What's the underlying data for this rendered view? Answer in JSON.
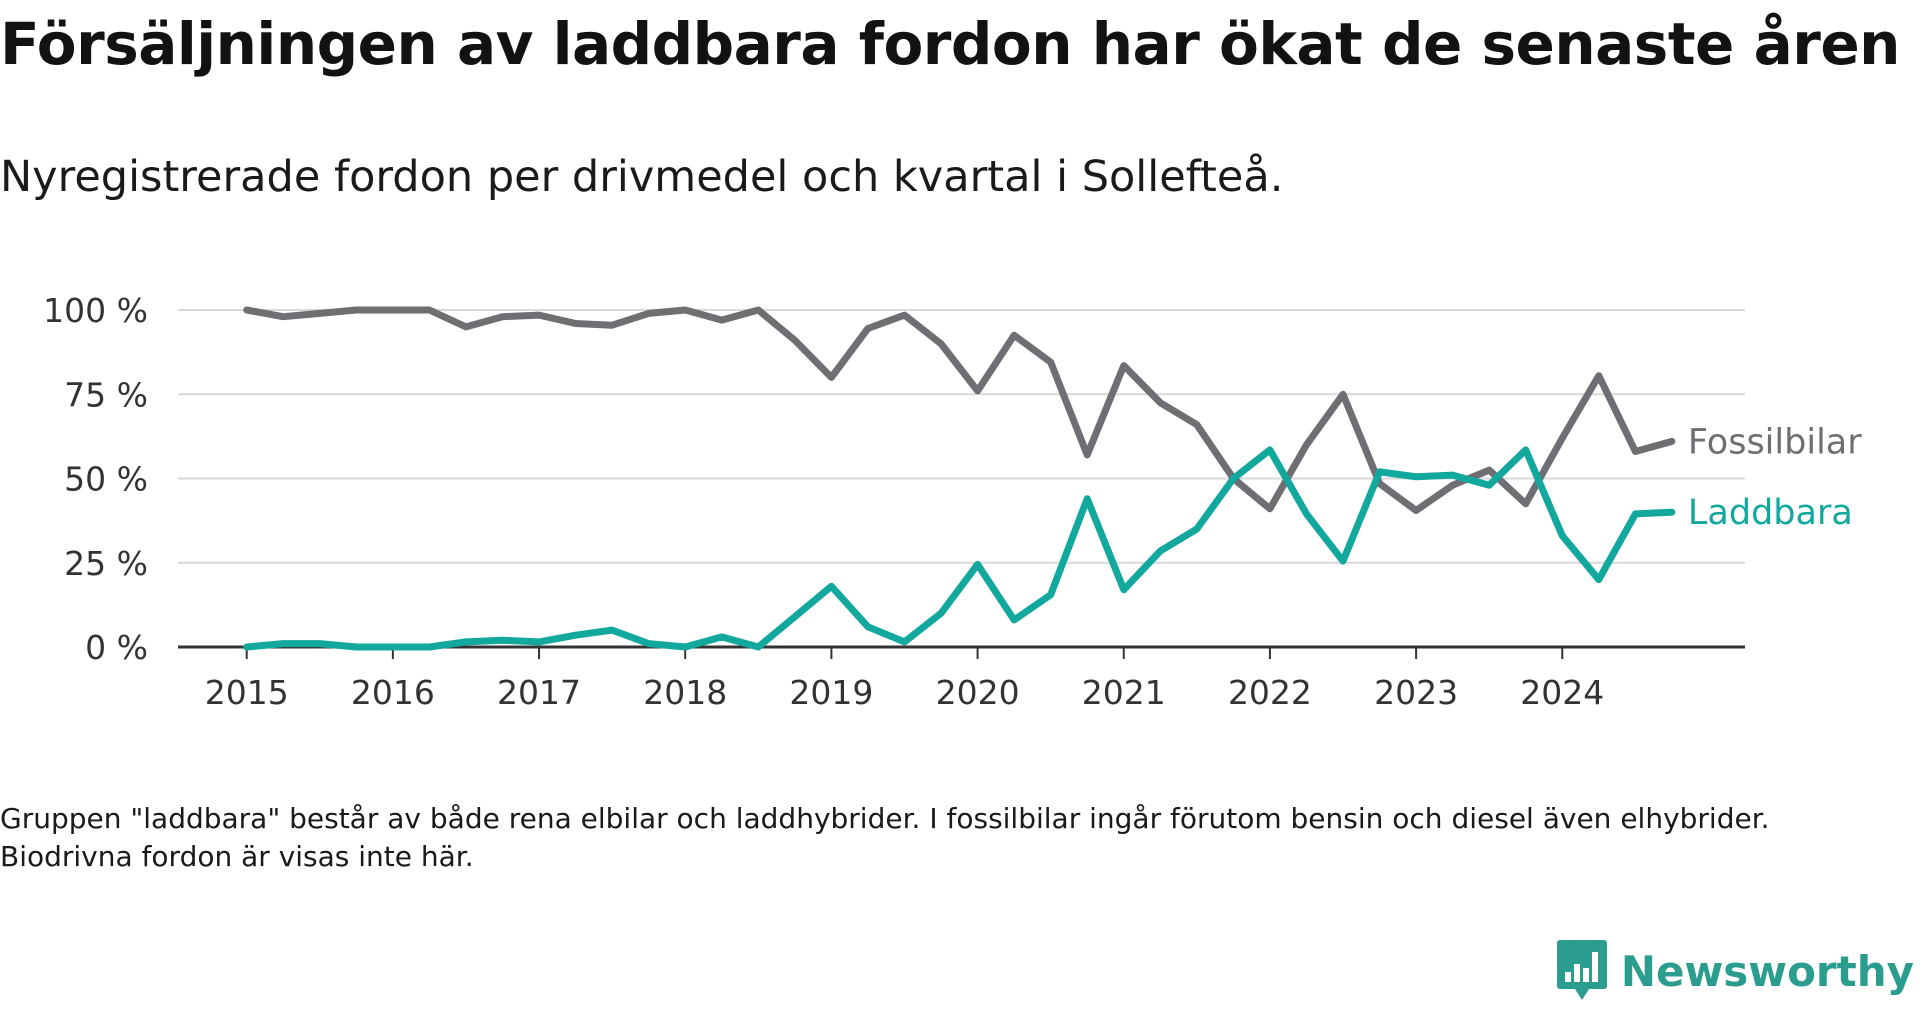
{
  "header": {
    "title": "Försäljningen av laddbara fordon har ökat de senaste åren",
    "subtitle": "Nyregistrerade fordon per drivmedel och kvartal i Sollefteå."
  },
  "footnote": "Gruppen \"laddbara\" består av både rena elbilar och laddhybrider. I fossilbilar ingår förutom bensin och diesel även elhybrider. Biodrivna fordon är visas inte här.",
  "brand": {
    "name": "Newsworthy",
    "icon": "newsworthy-logo-icon",
    "color": "#2a9d8f"
  },
  "chart_data": {
    "type": "line",
    "title": "Försäljningen av laddbara fordon har ökat de senaste åren",
    "subtitle": "Nyregistrerade fordon per drivmedel och kvartal i Sollefteå.",
    "xlabel": "",
    "ylabel": "",
    "x": [
      2015.0,
      2015.25,
      2015.5,
      2015.75,
      2016.0,
      2016.25,
      2016.5,
      2016.75,
      2017.0,
      2017.25,
      2017.5,
      2017.75,
      2018.0,
      2018.25,
      2018.5,
      2018.75,
      2019.0,
      2019.25,
      2019.5,
      2019.75,
      2020.0,
      2020.25,
      2020.5,
      2020.75,
      2021.0,
      2021.25,
      2021.5,
      2021.75,
      2022.0,
      2022.25,
      2022.5,
      2022.75,
      2023.0,
      2023.25,
      2023.5,
      2023.75,
      2024.0,
      2024.25,
      2024.5,
      2024.75
    ],
    "xlim": [
      2014.53,
      2025.25
    ],
    "ylim": [
      0,
      100
    ],
    "y_ticks": [
      0,
      25,
      50,
      75,
      100
    ],
    "y_tick_labels": [
      "0 %",
      "25 %",
      "50 %",
      "75 %",
      "100 %"
    ],
    "x_ticks": [
      2015,
      2016,
      2017,
      2018,
      2019,
      2020,
      2021,
      2022,
      2023,
      2024
    ],
    "x_tick_labels": [
      "2015",
      "2016",
      "2017",
      "2018",
      "2019",
      "2020",
      "2021",
      "2022",
      "2023",
      "2024"
    ],
    "grid": true,
    "legend": "direct labels at line ends",
    "series": [
      {
        "name": "Fossilbilar",
        "color": "#6e6e73",
        "values": [
          100,
          98,
          99,
          100,
          100,
          100,
          95,
          98,
          98.5,
          96,
          95.5,
          99,
          100,
          97,
          100,
          91,
          80,
          94.5,
          98.5,
          90,
          76,
          92.5,
          84.5,
          57,
          83.5,
          72.5,
          66,
          50,
          41,
          60,
          75,
          48.5,
          40.5,
          48,
          52.5,
          42.5,
          62,
          80.5,
          58,
          61
        ]
      },
      {
        "name": "Laddbara",
        "color": "#13a89e",
        "values": [
          0,
          1,
          1,
          0,
          0,
          0,
          1.5,
          2,
          1.5,
          3.5,
          5,
          1,
          0,
          3,
          0,
          9,
          18,
          6,
          1.5,
          10,
          24.5,
          8,
          15.5,
          44,
          17,
          28.5,
          35,
          50,
          58.5,
          39.5,
          25.5,
          52,
          50.5,
          51,
          48,
          58.5,
          33,
          20,
          39.5,
          40
        ]
      }
    ]
  }
}
